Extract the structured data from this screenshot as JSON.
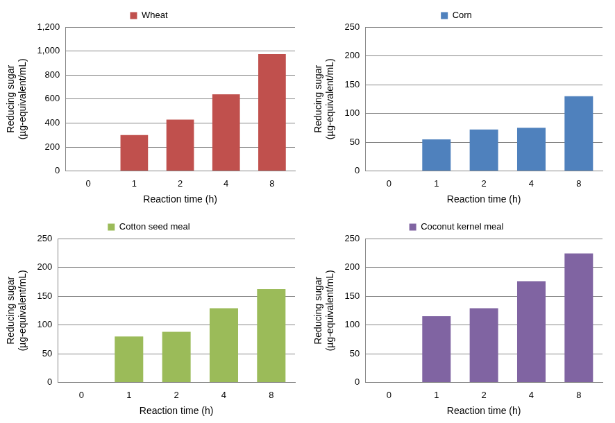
{
  "chart_data": [
    {
      "type": "bar",
      "categories": [
        "0",
        "1",
        "2",
        "4",
        "8"
      ],
      "series": [
        {
          "name": "Wheat",
          "color": "#c0504d",
          "values": [
            0,
            300,
            428,
            640,
            975
          ]
        }
      ],
      "x_label": "Reaction time (h)",
      "y_label": [
        "Reducing sugar",
        "(µg-equivalent/mL)"
      ],
      "ylim": [
        0,
        1200
      ],
      "yticks": [
        0,
        200,
        400,
        600,
        800,
        {
          "value": 1000,
          "label": "1,000"
        },
        {
          "value": 1200,
          "label": "1,200"
        }
      ],
      "grid": true,
      "legend": "top"
    },
    {
      "type": "bar",
      "categories": [
        "0",
        "1",
        "2",
        "4",
        "8"
      ],
      "series": [
        {
          "name": "Corn",
          "color": "#4f81bd",
          "values": [
            0,
            55,
            72,
            75,
            130
          ]
        }
      ],
      "x_label": "Reaction time (h)",
      "y_label": [
        "Reducing sugar",
        "(µg-equivalent/mL)"
      ],
      "ylim": [
        0,
        250
      ],
      "yticks": [
        0,
        50,
        100,
        150,
        200,
        250
      ],
      "grid": true,
      "legend": "top"
    },
    {
      "type": "bar",
      "categories": [
        "0",
        "1",
        "2",
        "4",
        "8"
      ],
      "series": [
        {
          "name": "Cotton seed meal",
          "color": "#9bbb59",
          "values": [
            0,
            80,
            88,
            129,
            162
          ]
        }
      ],
      "x_label": "Reaction time (h)",
      "y_label": [
        "Reducing sugar",
        "(µg-equivalent/mL)"
      ],
      "ylim": [
        0,
        250
      ],
      "yticks": [
        0,
        50,
        100,
        150,
        200,
        250
      ],
      "grid": true,
      "legend": "top"
    },
    {
      "type": "bar",
      "categories": [
        "0",
        "1",
        "2",
        "4",
        "8"
      ],
      "series": [
        {
          "name": "Coconut kernel meal",
          "color": "#8064a2",
          "values": [
            0,
            115,
            129,
            176,
            224
          ]
        }
      ],
      "x_label": "Reaction time (h)",
      "y_label": [
        "Reducing sugar",
        "(µg-equivalent/mL)"
      ],
      "ylim": [
        0,
        250
      ],
      "yticks": [
        0,
        50,
        100,
        150,
        200,
        250
      ],
      "grid": true,
      "legend": "top"
    }
  ]
}
